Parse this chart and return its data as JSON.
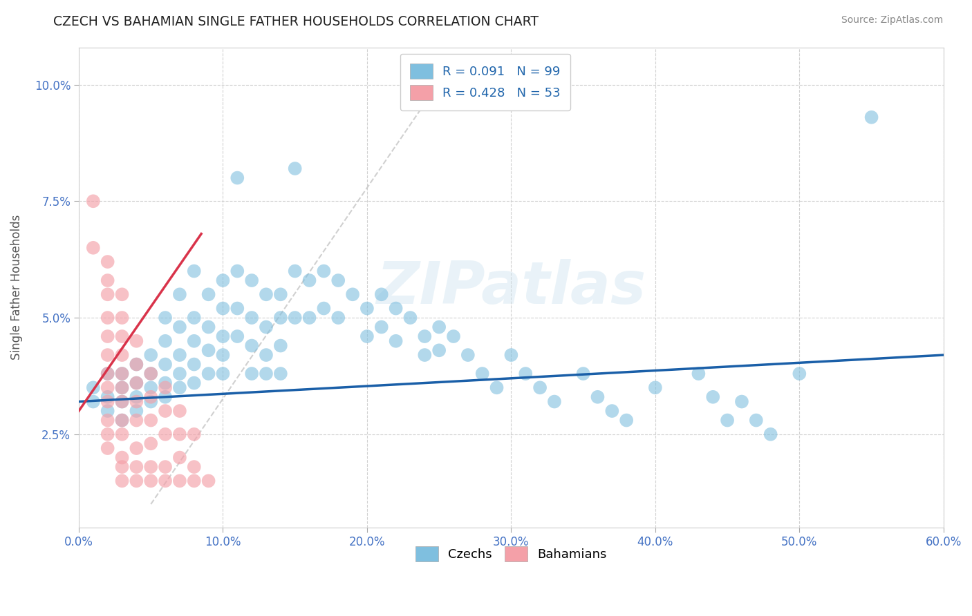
{
  "title": "CZECH VS BAHAMIAN SINGLE FATHER HOUSEHOLDS CORRELATION CHART",
  "source": "Source: ZipAtlas.com",
  "ylabel": "Single Father Households",
  "xlim": [
    0.0,
    0.6
  ],
  "ylim": [
    0.005,
    0.108
  ],
  "xticks": [
    0.0,
    0.1,
    0.2,
    0.3,
    0.4,
    0.5,
    0.6
  ],
  "xtick_labels": [
    "0.0%",
    "10.0%",
    "20.0%",
    "30.0%",
    "40.0%",
    "50.0%",
    "60.0%"
  ],
  "yticks": [
    0.025,
    0.05,
    0.075,
    0.1
  ],
  "ytick_labels": [
    "2.5%",
    "5.0%",
    "7.5%",
    "10.0%"
  ],
  "czech_R": 0.091,
  "czech_N": 99,
  "bahamian_R": 0.428,
  "bahamian_N": 53,
  "czech_color": "#7fbfdf",
  "bahamian_color": "#f4a0a8",
  "czech_scatter": [
    [
      0.01,
      0.035
    ],
    [
      0.01,
      0.032
    ],
    [
      0.02,
      0.038
    ],
    [
      0.02,
      0.033
    ],
    [
      0.02,
      0.03
    ],
    [
      0.03,
      0.038
    ],
    [
      0.03,
      0.035
    ],
    [
      0.03,
      0.032
    ],
    [
      0.03,
      0.028
    ],
    [
      0.04,
      0.04
    ],
    [
      0.04,
      0.036
    ],
    [
      0.04,
      0.033
    ],
    [
      0.04,
      0.03
    ],
    [
      0.05,
      0.042
    ],
    [
      0.05,
      0.038
    ],
    [
      0.05,
      0.035
    ],
    [
      0.05,
      0.032
    ],
    [
      0.06,
      0.05
    ],
    [
      0.06,
      0.045
    ],
    [
      0.06,
      0.04
    ],
    [
      0.06,
      0.036
    ],
    [
      0.06,
      0.033
    ],
    [
      0.07,
      0.055
    ],
    [
      0.07,
      0.048
    ],
    [
      0.07,
      0.042
    ],
    [
      0.07,
      0.038
    ],
    [
      0.07,
      0.035
    ],
    [
      0.08,
      0.06
    ],
    [
      0.08,
      0.05
    ],
    [
      0.08,
      0.045
    ],
    [
      0.08,
      0.04
    ],
    [
      0.08,
      0.036
    ],
    [
      0.09,
      0.055
    ],
    [
      0.09,
      0.048
    ],
    [
      0.09,
      0.043
    ],
    [
      0.09,
      0.038
    ],
    [
      0.1,
      0.058
    ],
    [
      0.1,
      0.052
    ],
    [
      0.1,
      0.046
    ],
    [
      0.1,
      0.042
    ],
    [
      0.1,
      0.038
    ],
    [
      0.11,
      0.08
    ],
    [
      0.11,
      0.06
    ],
    [
      0.11,
      0.052
    ],
    [
      0.11,
      0.046
    ],
    [
      0.12,
      0.058
    ],
    [
      0.12,
      0.05
    ],
    [
      0.12,
      0.044
    ],
    [
      0.12,
      0.038
    ],
    [
      0.13,
      0.055
    ],
    [
      0.13,
      0.048
    ],
    [
      0.13,
      0.042
    ],
    [
      0.13,
      0.038
    ],
    [
      0.14,
      0.055
    ],
    [
      0.14,
      0.05
    ],
    [
      0.14,
      0.044
    ],
    [
      0.14,
      0.038
    ],
    [
      0.15,
      0.082
    ],
    [
      0.15,
      0.06
    ],
    [
      0.15,
      0.05
    ],
    [
      0.16,
      0.058
    ],
    [
      0.16,
      0.05
    ],
    [
      0.17,
      0.06
    ],
    [
      0.17,
      0.052
    ],
    [
      0.18,
      0.058
    ],
    [
      0.18,
      0.05
    ],
    [
      0.19,
      0.055
    ],
    [
      0.2,
      0.052
    ],
    [
      0.2,
      0.046
    ],
    [
      0.21,
      0.055
    ],
    [
      0.21,
      0.048
    ],
    [
      0.22,
      0.052
    ],
    [
      0.22,
      0.045
    ],
    [
      0.23,
      0.05
    ],
    [
      0.24,
      0.046
    ],
    [
      0.24,
      0.042
    ],
    [
      0.25,
      0.048
    ],
    [
      0.25,
      0.043
    ],
    [
      0.26,
      0.046
    ],
    [
      0.27,
      0.042
    ],
    [
      0.28,
      0.038
    ],
    [
      0.29,
      0.035
    ],
    [
      0.3,
      0.042
    ],
    [
      0.31,
      0.038
    ],
    [
      0.32,
      0.035
    ],
    [
      0.33,
      0.032
    ],
    [
      0.35,
      0.038
    ],
    [
      0.36,
      0.033
    ],
    [
      0.37,
      0.03
    ],
    [
      0.38,
      0.028
    ],
    [
      0.4,
      0.035
    ],
    [
      0.43,
      0.038
    ],
    [
      0.44,
      0.033
    ],
    [
      0.45,
      0.028
    ],
    [
      0.46,
      0.032
    ],
    [
      0.47,
      0.028
    ],
    [
      0.48,
      0.025
    ],
    [
      0.5,
      0.038
    ],
    [
      0.55,
      0.093
    ]
  ],
  "bahamian_scatter": [
    [
      0.01,
      0.075
    ],
    [
      0.01,
      0.065
    ],
    [
      0.02,
      0.062
    ],
    [
      0.02,
      0.058
    ],
    [
      0.02,
      0.055
    ],
    [
      0.02,
      0.05
    ],
    [
      0.02,
      0.046
    ],
    [
      0.02,
      0.042
    ],
    [
      0.02,
      0.038
    ],
    [
      0.02,
      0.035
    ],
    [
      0.02,
      0.032
    ],
    [
      0.02,
      0.028
    ],
    [
      0.02,
      0.025
    ],
    [
      0.02,
      0.022
    ],
    [
      0.03,
      0.055
    ],
    [
      0.03,
      0.05
    ],
    [
      0.03,
      0.046
    ],
    [
      0.03,
      0.042
    ],
    [
      0.03,
      0.038
    ],
    [
      0.03,
      0.035
    ],
    [
      0.03,
      0.032
    ],
    [
      0.03,
      0.028
    ],
    [
      0.03,
      0.025
    ],
    [
      0.03,
      0.02
    ],
    [
      0.03,
      0.018
    ],
    [
      0.03,
      0.015
    ],
    [
      0.04,
      0.045
    ],
    [
      0.04,
      0.04
    ],
    [
      0.04,
      0.036
    ],
    [
      0.04,
      0.032
    ],
    [
      0.04,
      0.028
    ],
    [
      0.04,
      0.022
    ],
    [
      0.04,
      0.018
    ],
    [
      0.04,
      0.015
    ],
    [
      0.05,
      0.038
    ],
    [
      0.05,
      0.033
    ],
    [
      0.05,
      0.028
    ],
    [
      0.05,
      0.023
    ],
    [
      0.05,
      0.018
    ],
    [
      0.05,
      0.015
    ],
    [
      0.06,
      0.035
    ],
    [
      0.06,
      0.03
    ],
    [
      0.06,
      0.025
    ],
    [
      0.06,
      0.018
    ],
    [
      0.06,
      0.015
    ],
    [
      0.07,
      0.03
    ],
    [
      0.07,
      0.025
    ],
    [
      0.07,
      0.02
    ],
    [
      0.07,
      0.015
    ],
    [
      0.08,
      0.025
    ],
    [
      0.08,
      0.018
    ],
    [
      0.08,
      0.015
    ],
    [
      0.09,
      0.015
    ]
  ],
  "watermark_text": "ZIPatlas",
  "background_color": "#ffffff",
  "grid_color": "#cccccc",
  "trendline_blue_color": "#1a5fa8",
  "trendline_pink_color": "#d9334a",
  "diagonal_color": "#c8c8c8"
}
